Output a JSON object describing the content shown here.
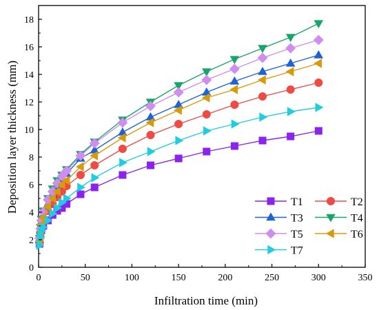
{
  "chart_data": {
    "type": "line",
    "xlabel": "Infiltration time (min)",
    "ylabel": "Deposition layer thickness (mm)",
    "xlim": [
      0,
      350
    ],
    "ylim": [
      0,
      19
    ],
    "x_ticks": [
      0,
      50,
      100,
      150,
      200,
      250,
      300,
      350
    ],
    "y_ticks": [
      0,
      2,
      4,
      6,
      8,
      10,
      12,
      14,
      16,
      18
    ],
    "grid": false,
    "legend_placement": "bottom-right",
    "x": [
      1,
      2,
      3,
      5,
      10,
      15,
      20,
      25,
      30,
      45,
      60,
      90,
      120,
      150,
      180,
      210,
      240,
      270,
      300
    ],
    "series": [
      {
        "name": "T1",
        "color": "#8b22ee",
        "marker": "square",
        "values": [
          1.7,
          2.3,
          2.7,
          3.0,
          3.4,
          3.8,
          4.1,
          4.3,
          4.6,
          5.3,
          5.8,
          6.7,
          7.4,
          7.9,
          8.4,
          8.8,
          9.2,
          9.5,
          9.9
        ]
      },
      {
        "name": "T2",
        "color": "#f04a45",
        "marker": "circle",
        "values": [
          1.8,
          2.5,
          3.0,
          3.5,
          4.1,
          4.6,
          5.1,
          5.5,
          5.9,
          6.7,
          7.4,
          8.6,
          9.6,
          10.4,
          11.1,
          11.8,
          12.4,
          12.9,
          13.4
        ]
      },
      {
        "name": "T3",
        "color": "#1e62d7",
        "marker": "triangle-up",
        "values": [
          2.0,
          2.7,
          3.3,
          3.8,
          4.6,
          5.3,
          5.9,
          6.4,
          6.8,
          7.9,
          8.5,
          9.8,
          10.9,
          11.8,
          12.7,
          13.5,
          14.2,
          14.8,
          15.4
        ]
      },
      {
        "name": "T4",
        "color": "#17a669",
        "marker": "triangle-down",
        "values": [
          2.1,
          2.9,
          3.5,
          4.1,
          5.0,
          5.7,
          6.3,
          6.7,
          7.1,
          8.2,
          9.1,
          10.7,
          12.0,
          13.2,
          14.2,
          15.1,
          15.9,
          16.7,
          17.7
        ]
      },
      {
        "name": "T5",
        "color": "#cf8df0",
        "marker": "diamond",
        "values": [
          2.1,
          2.8,
          3.4,
          4.0,
          4.9,
          5.5,
          6.1,
          6.6,
          7.0,
          8.1,
          9.0,
          10.5,
          11.7,
          12.7,
          13.6,
          14.4,
          15.2,
          15.9,
          16.5
        ]
      },
      {
        "name": "T6",
        "color": "#d99a08",
        "marker": "triangle-left",
        "values": [
          1.9,
          2.6,
          3.1,
          3.6,
          4.4,
          5.0,
          5.5,
          6.0,
          6.3,
          7.3,
          8.1,
          9.4,
          10.5,
          11.4,
          12.3,
          12.9,
          13.6,
          14.2,
          14.8
        ]
      },
      {
        "name": "T7",
        "color": "#20cde0",
        "marker": "triangle-right",
        "values": [
          1.6,
          2.2,
          2.6,
          2.9,
          3.4,
          3.9,
          4.3,
          4.7,
          5.0,
          5.8,
          6.5,
          7.6,
          8.4,
          9.2,
          9.9,
          10.4,
          10.9,
          11.3,
          11.6
        ]
      }
    ]
  }
}
